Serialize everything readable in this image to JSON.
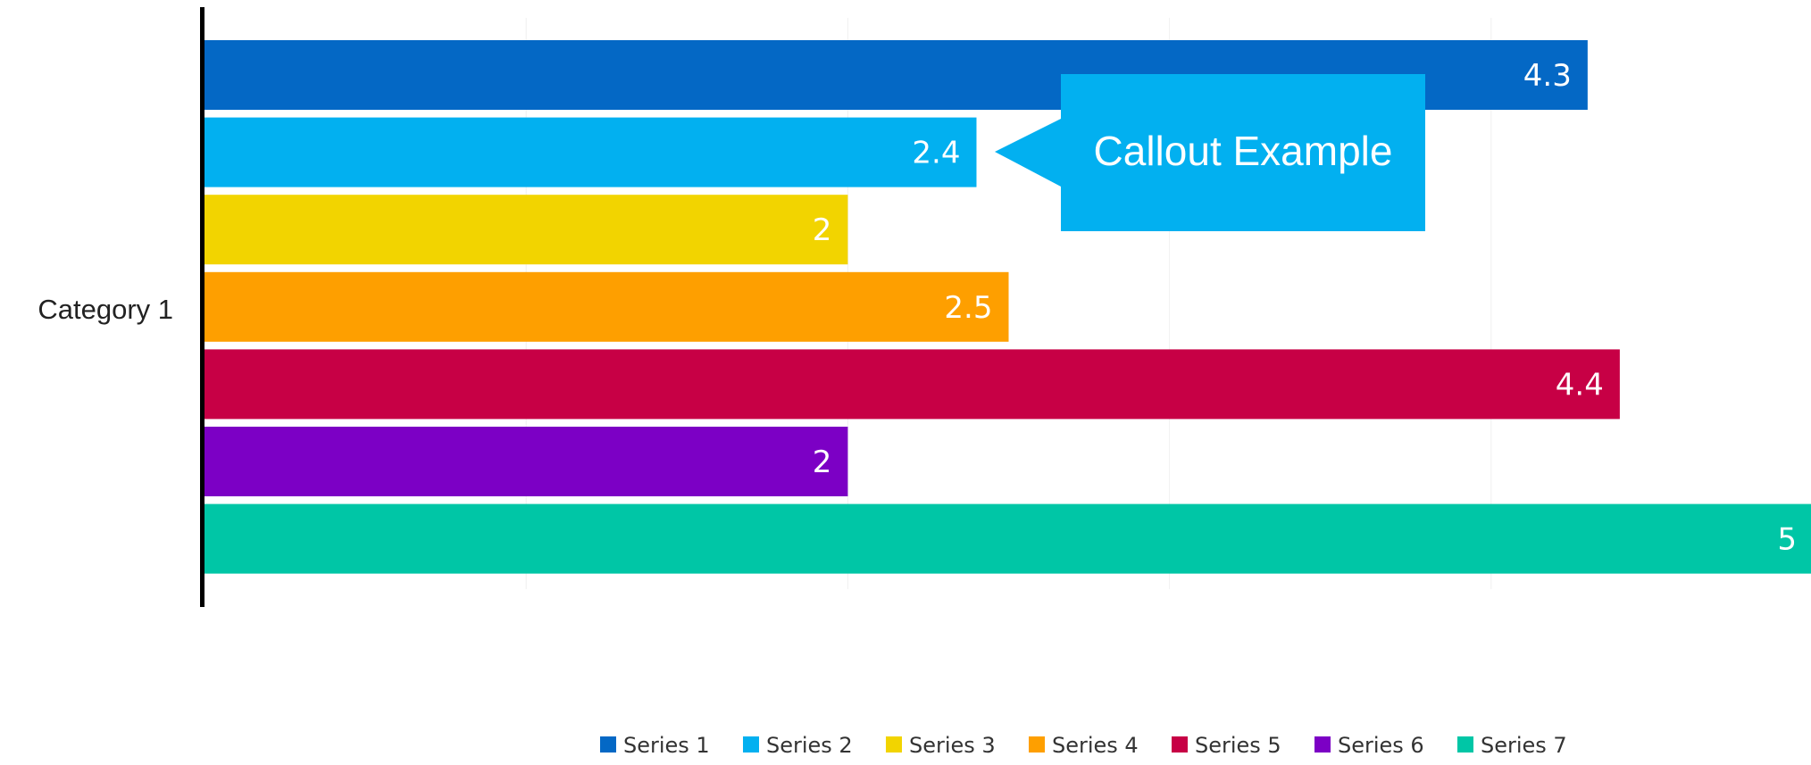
{
  "chart_data": {
    "type": "bar",
    "orientation": "horizontal",
    "categories": [
      "Category 1"
    ],
    "series": [
      {
        "name": "Series 1",
        "values": [
          4.3
        ],
        "color": "#0468C5"
      },
      {
        "name": "Series 2",
        "values": [
          2.4
        ],
        "color": "#02B0F0"
      },
      {
        "name": "Series 3",
        "values": [
          2
        ],
        "color": "#F2D400"
      },
      {
        "name": "Series 4",
        "values": [
          2.5
        ],
        "color": "#FE9F00"
      },
      {
        "name": "Series 5",
        "values": [
          4.4
        ],
        "color": "#C70045"
      },
      {
        "name": "Series 6",
        "values": [
          2
        ],
        "color": "#7C00C5"
      },
      {
        "name": "Series 7",
        "values": [
          5
        ],
        "color": "#00C6A6"
      }
    ],
    "xlim": [
      0,
      5
    ],
    "grid": true,
    "data_labels": true,
    "legend": "bottom",
    "annotation": {
      "text": "Callout Example",
      "target_series": "Series 2",
      "color": "#02B0F0"
    }
  }
}
